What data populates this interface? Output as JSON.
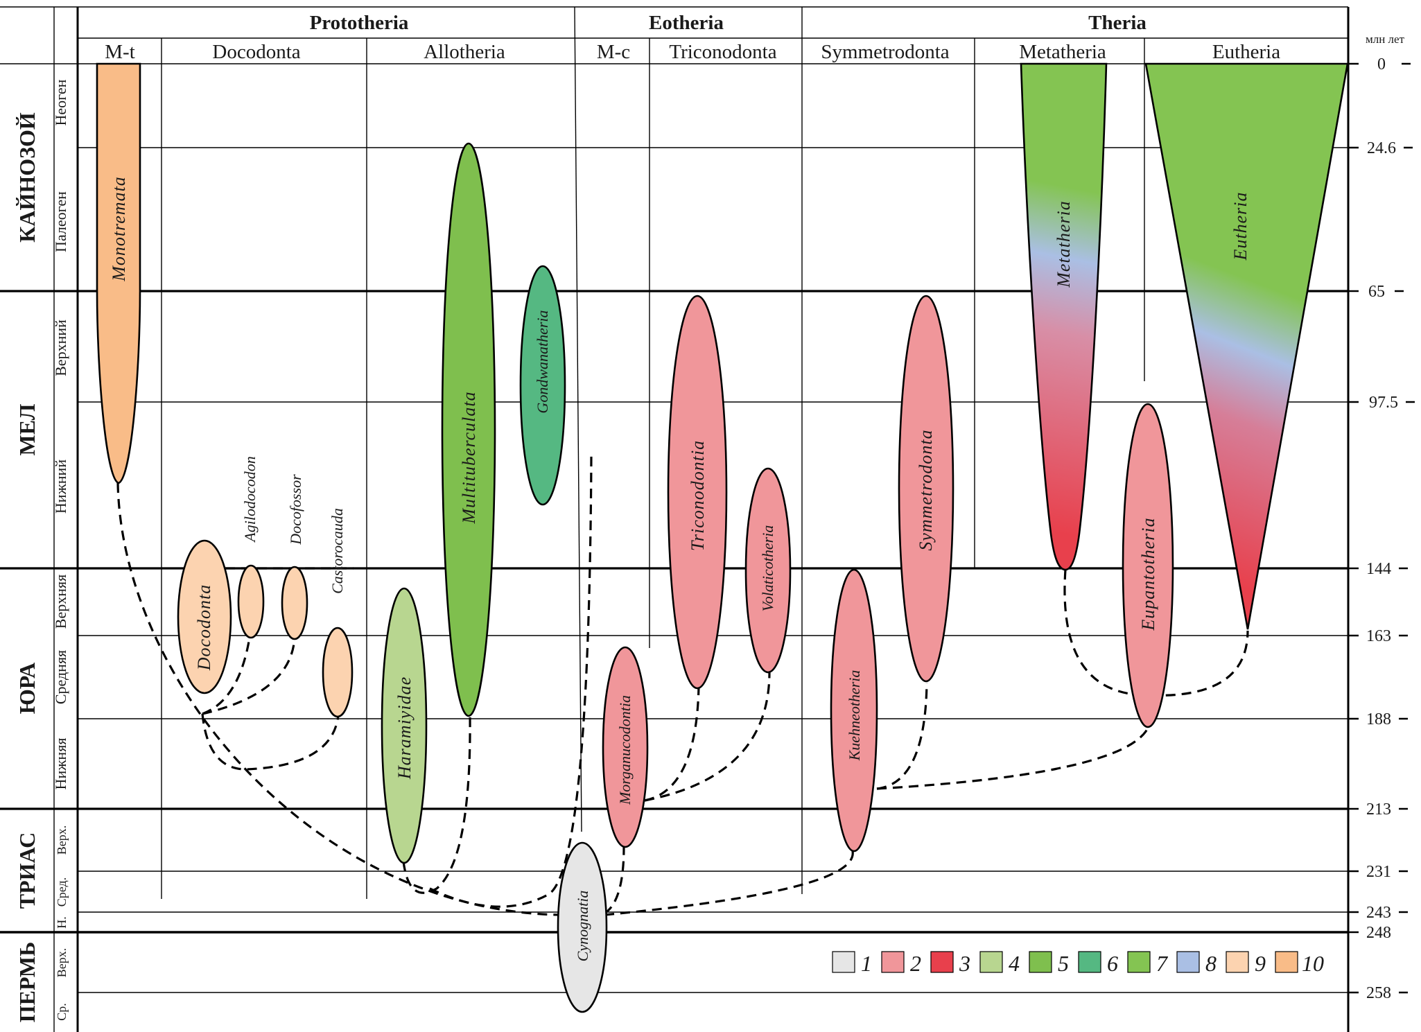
{
  "header": {
    "groups": [
      {
        "id": "prototheria",
        "label": "Prototheria"
      },
      {
        "id": "eotheria",
        "label": "Eotheria"
      },
      {
        "id": "theria",
        "label": "Theria"
      }
    ],
    "subgroups": [
      {
        "id": "m-t",
        "label": "M-t"
      },
      {
        "id": "docodonta",
        "label": "Docodonta"
      },
      {
        "id": "allotheria",
        "label": "Allotheria"
      },
      {
        "id": "m-c",
        "label": "M-c"
      },
      {
        "id": "triconodonta",
        "label": "Triconodonta"
      },
      {
        "id": "symmetrodonta",
        "label": "Symmetrodonta"
      },
      {
        "id": "metatheria",
        "label": "Metatheria"
      },
      {
        "id": "eutheria",
        "label": "Eutheria"
      }
    ]
  },
  "time_scale": {
    "unit_label": "млн лет",
    "boundaries": [
      0,
      24.6,
      65,
      97.5,
      144,
      163,
      188,
      213,
      231,
      243,
      248,
      258
    ],
    "boundary_labels": [
      "0",
      "24.6",
      "65",
      "97.5",
      "144",
      "163",
      "188",
      "213",
      "231",
      "243",
      "248",
      "258"
    ],
    "eras": [
      {
        "label": "КАЙНОЗОЙ",
        "from": 0,
        "to": 65
      },
      {
        "label": "МЕЛ",
        "from": 65,
        "to": 144
      },
      {
        "label": "ЮРА",
        "from": 144,
        "to": 213
      },
      {
        "label": "ТРИАС",
        "from": 213,
        "to": 248
      },
      {
        "label": "ПЕРМЬ",
        "from": 248,
        "to": 262
      }
    ],
    "epochs": [
      {
        "label": "Неоген",
        "from": 0,
        "to": 24.6
      },
      {
        "label": "Палеоген",
        "from": 24.6,
        "to": 65
      },
      {
        "label": "Верхний",
        "from": 65,
        "to": 97.5
      },
      {
        "label": "Нижний",
        "from": 97.5,
        "to": 144
      },
      {
        "label": "Верхняя",
        "from": 144,
        "to": 163
      },
      {
        "label": "Средняя",
        "from": 163,
        "to": 188
      },
      {
        "label": "Нижняя",
        "from": 188,
        "to": 213
      },
      {
        "label": "Верх.",
        "from": 213,
        "to": 231
      },
      {
        "label": "Сред.",
        "from": 231,
        "to": 243
      },
      {
        "label": "Н.",
        "from": 243,
        "to": 248
      },
      {
        "label": "Верх.",
        "from": 248,
        "to": 258
      },
      {
        "label": "Ср.",
        "from": 258,
        "to": 262
      }
    ]
  },
  "colors": {
    "1": "#e6e6e6",
    "2": "#f0969a",
    "3": "#e8404c",
    "4": "#b8d690",
    "5": "#7fbf4e",
    "6": "#55b882",
    "7": "#84c452",
    "8": "#aabfe4",
    "9": "#fcd3b0",
    "10": "#f9bc88"
  },
  "taxa": [
    {
      "id": "monotremata",
      "label": "Monotremata",
      "color_key": "10"
    },
    {
      "id": "docodonta-taxon",
      "label": "Docodonta",
      "color_key": "9"
    },
    {
      "id": "agilodocodon",
      "label": "Agilodocodon",
      "color_key": "9"
    },
    {
      "id": "docofossor",
      "label": "Docofossor",
      "color_key": "9"
    },
    {
      "id": "castorocauda",
      "label": "Castorocauda",
      "color_key": "9"
    },
    {
      "id": "haramiyidae",
      "label": "Haramiyidae",
      "color_key": "4"
    },
    {
      "id": "multituberculata",
      "label": "Multituberculata",
      "color_key": "5"
    },
    {
      "id": "gondwanatheria",
      "label": "Gondwanatheria",
      "color_key": "6"
    },
    {
      "id": "cynognatia",
      "label": "Cynognatia",
      "color_key": "1"
    },
    {
      "id": "morganucodontia",
      "label": "Morganucodontia",
      "color_key": "2"
    },
    {
      "id": "triconodontia",
      "label": "Triconodontia",
      "color_key": "2"
    },
    {
      "id": "volaticotheria",
      "label": "Volaticotheria",
      "color_key": "2"
    },
    {
      "id": "kuehneotheria",
      "label": "Kuehneotheria",
      "color_key": "2"
    },
    {
      "id": "symmetrodonta-taxon",
      "label": "Symmetrodonta",
      "color_key": "2"
    },
    {
      "id": "metatheria-taxon",
      "label": "Metatheria",
      "color_key": "gradient"
    },
    {
      "id": "eupantotheria",
      "label": "Eupantotheria",
      "color_key": "2"
    },
    {
      "id": "eutheria-taxon",
      "label": "Eutheria",
      "color_key": "gradient"
    }
  ],
  "legend": {
    "items": [
      {
        "key": "1",
        "label": "1"
      },
      {
        "key": "2",
        "label": "2"
      },
      {
        "key": "3",
        "label": "3"
      },
      {
        "key": "4",
        "label": "4"
      },
      {
        "key": "5",
        "label": "5"
      },
      {
        "key": "6",
        "label": "6"
      },
      {
        "key": "7",
        "label": "7"
      },
      {
        "key": "8",
        "label": "8"
      },
      {
        "key": "9",
        "label": "9"
      },
      {
        "key": "10",
        "label": "10"
      }
    ]
  }
}
